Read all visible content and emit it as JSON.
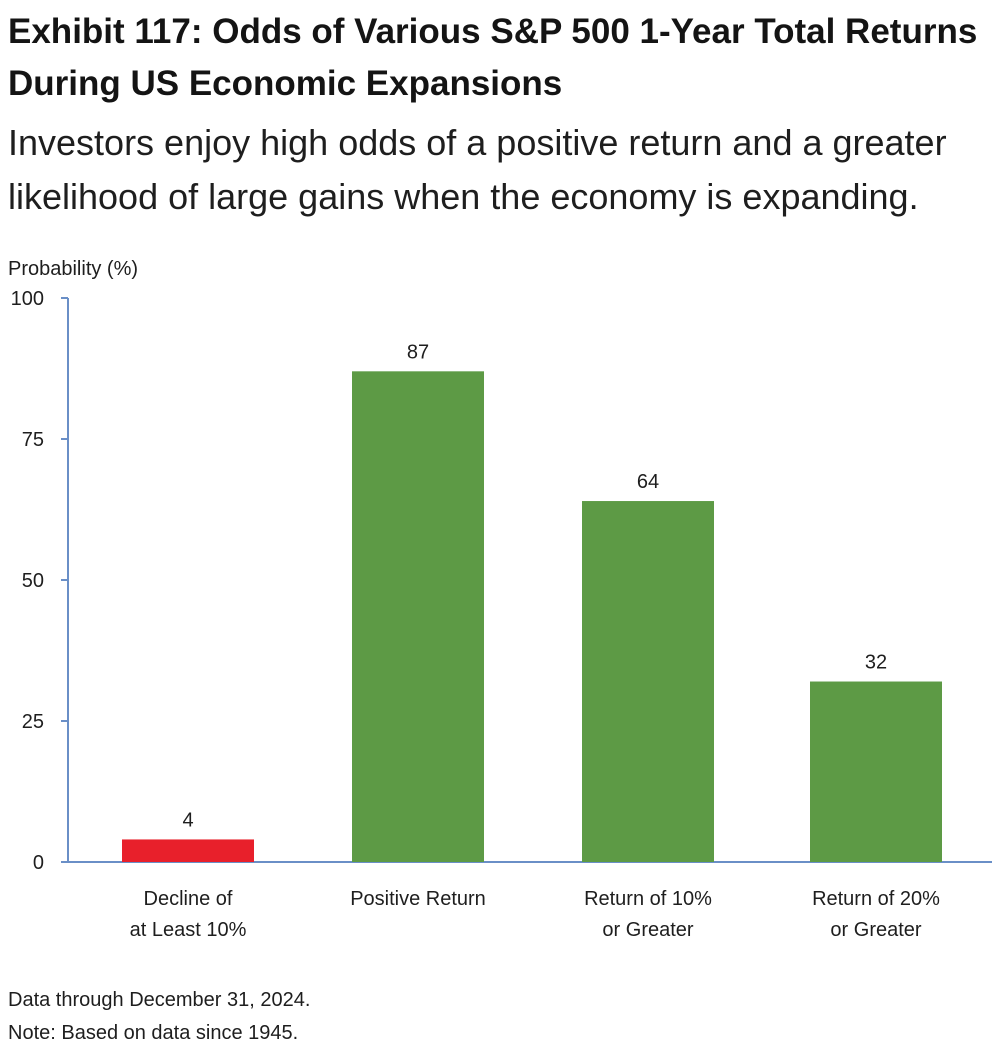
{
  "header": {
    "title": "Exhibit 117: Odds of Various S&P 500 1-Year Total Returns During US Economic Expansions",
    "subtitle": "Investors enjoy high odds of a positive return and a greater likelihood of large gains when the economy is expanding."
  },
  "chart_data": {
    "type": "bar",
    "title": "Exhibit 117: Odds of Various S&P 500 1-Year Total Returns During US Economic Expansions",
    "subtitle": "Investors enjoy high odds of a positive return and a greater likelihood of large gains when the economy is expanding.",
    "ylabel": "Probability (%)",
    "xlabel": "",
    "ylim": [
      0,
      100
    ],
    "yticks": [
      0,
      25,
      50,
      75,
      100
    ],
    "grid": false,
    "legend": "none",
    "categories": [
      [
        "Decline of",
        "at Least 10%"
      ],
      [
        "Positive Return"
      ],
      [
        "Return of 10%",
        "or Greater"
      ],
      [
        "Return of 20%",
        "or Greater"
      ]
    ],
    "values": [
      4,
      87,
      64,
      32
    ],
    "colors": [
      "#e8202b",
      "#5d9a45",
      "#5d9a45",
      "#5d9a45"
    ],
    "axis_color": "#6a8fc7"
  },
  "footnotes": {
    "data_through": "Data through December 31, 2024.",
    "note": "Note: Based on data since 1945."
  }
}
